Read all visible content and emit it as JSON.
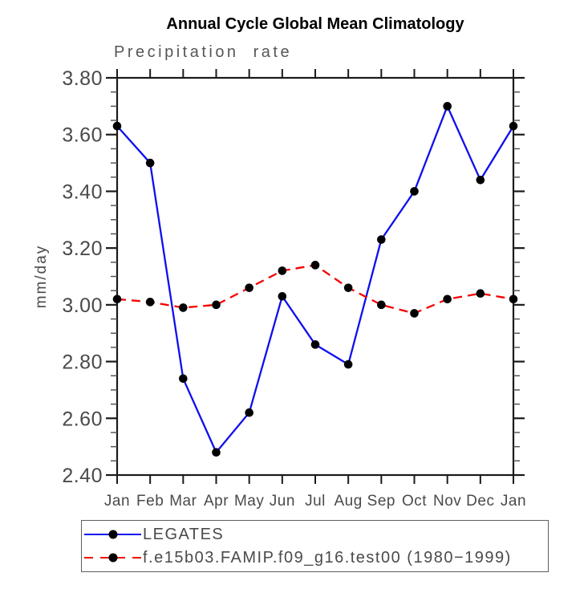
{
  "chart_data": {
    "type": "line",
    "title": "Annual Cycle Global Mean Climatology",
    "subtitle": "Precipitation rate",
    "xlabel": "",
    "ylabel": "mm/day",
    "categories": [
      "Jan",
      "Feb",
      "Mar",
      "Apr",
      "May",
      "Jun",
      "Jul",
      "Aug",
      "Sep",
      "Oct",
      "Nov",
      "Dec",
      "Jan"
    ],
    "ylim": [
      2.4,
      3.8
    ],
    "ytick_step": 0.2,
    "ytick_minor_step": 0.05,
    "ytick_labels": [
      "2.40",
      "2.60",
      "2.80",
      "3.00",
      "3.20",
      "3.40",
      "3.60",
      "3.80"
    ],
    "grid": false,
    "legend_position": "bottom-left",
    "frame_color": "#1a1a1a",
    "minor_tick_color": "#4d4d4d",
    "text_color": "#4a4a4a",
    "marker_shape": "filled-circle",
    "series": [
      {
        "name": "LEGATES",
        "color": "#0f0fee",
        "style": "solid",
        "marker_color": "#000000",
        "values": [
          3.63,
          3.5,
          2.74,
          2.48,
          2.62,
          3.03,
          2.86,
          2.79,
          3.23,
          3.4,
          3.7,
          3.44,
          3.63
        ]
      },
      {
        "name": "f.e15b03.FAMIP.f09_g16.test00 (1980−1999)",
        "color": "#f50000",
        "style": "dashed",
        "marker_color": "#000000",
        "values": [
          3.02,
          3.01,
          2.99,
          3.0,
          3.06,
          3.12,
          3.14,
          3.06,
          3.0,
          2.97,
          3.02,
          3.04,
          3.02
        ]
      }
    ]
  }
}
